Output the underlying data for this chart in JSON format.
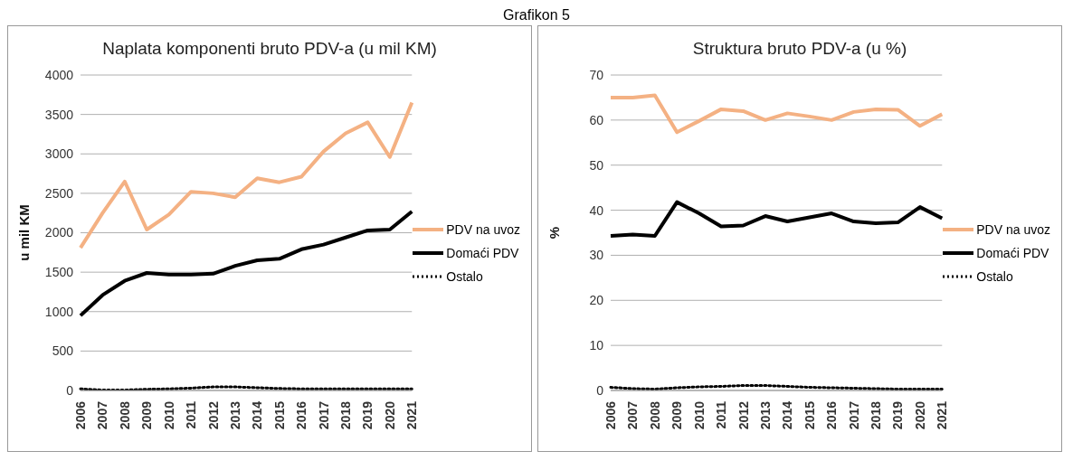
{
  "chart_data": [
    {
      "type": "line",
      "title": "Naplata komponenti bruto PDV-a (u mil KM)",
      "ylabel": "u mil KM",
      "annotations": [
        "Grafikon 5"
      ],
      "categories": [
        "2006",
        "2007",
        "2008",
        "2009",
        "2010",
        "2011",
        "2012",
        "2013",
        "2014",
        "2015",
        "2016",
        "2017",
        "2018",
        "2019",
        "2020",
        "2021"
      ],
      "series": [
        {
          "name": "PDV na uvoz",
          "color": "#f4b183",
          "line_style": "solid",
          "values": [
            1810,
            2250,
            2650,
            2040,
            2230,
            2520,
            2500,
            2450,
            2690,
            2640,
            2710,
            3030,
            3260,
            3400,
            2960,
            3650
          ]
        },
        {
          "name": "Domaći PDV",
          "color": "#000000",
          "line_style": "solid",
          "values": [
            950,
            1210,
            1390,
            1490,
            1470,
            1470,
            1480,
            1580,
            1650,
            1670,
            1790,
            1850,
            1940,
            2030,
            2040,
            2270
          ]
        },
        {
          "name": "Ostalo",
          "color": "#000000",
          "line_style": "dotted",
          "values": [
            20,
            5,
            5,
            15,
            20,
            30,
            45,
            45,
            35,
            25,
            20,
            20,
            20,
            20,
            20,
            20
          ]
        }
      ],
      "ylim": [
        0,
        4000
      ],
      "yticks": [
        0,
        500,
        1000,
        1500,
        2000,
        2500,
        3000,
        3500,
        4000
      ],
      "grid": "y",
      "legend": "right"
    },
    {
      "type": "line",
      "title": "Struktura bruto PDV-a (u %)",
      "ylabel": "%",
      "categories": [
        "2006",
        "2007",
        "2008",
        "2009",
        "2010",
        "2011",
        "2012",
        "2013",
        "2014",
        "2015",
        "2016",
        "2017",
        "2018",
        "2019",
        "2020",
        "2021"
      ],
      "series": [
        {
          "name": "PDV na uvoz",
          "color": "#f4b183",
          "line_style": "solid",
          "values": [
            65,
            65,
            65.5,
            57.3,
            59.8,
            62.4,
            62,
            60,
            61.5,
            60.8,
            60,
            61.8,
            62.4,
            62.3,
            58.7,
            61.3
          ]
        },
        {
          "name": "Domaći PDV",
          "color": "#000000",
          "line_style": "solid",
          "values": [
            34.3,
            34.6,
            34.3,
            41.8,
            39.3,
            36.4,
            36.6,
            38.7,
            37.5,
            38.4,
            39.3,
            37.5,
            37.1,
            37.3,
            40.7,
            38.2
          ]
        },
        {
          "name": "Ostalo",
          "color": "#000000",
          "line_style": "dotted",
          "values": [
            0.7,
            0.4,
            0.3,
            0.6,
            0.8,
            0.9,
            1.1,
            1.1,
            0.9,
            0.7,
            0.6,
            0.5,
            0.4,
            0.3,
            0.3,
            0.3
          ]
        }
      ],
      "ylim": [
        0,
        70
      ],
      "yticks": [
        0,
        10,
        20,
        30,
        40,
        50,
        60,
        70
      ],
      "grid": "y",
      "legend": "right"
    }
  ]
}
